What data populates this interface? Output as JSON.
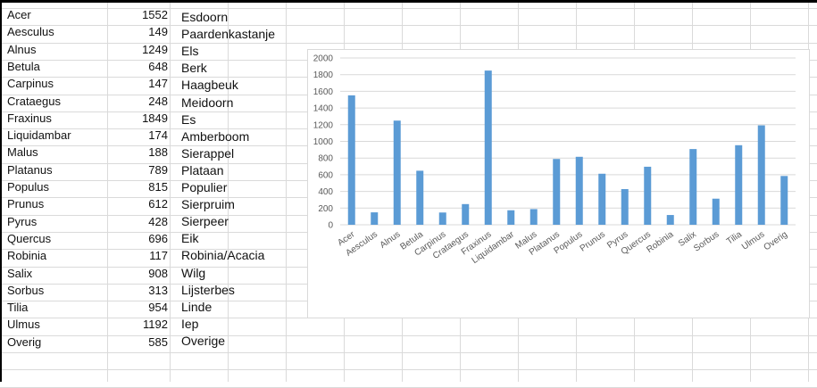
{
  "table": {
    "rows": [
      {
        "name": "Acer",
        "value": "1552",
        "dutch": "Esdoorn"
      },
      {
        "name": "Aesculus",
        "value": "149",
        "dutch": "Paardenkastanje"
      },
      {
        "name": "Alnus",
        "value": "1249",
        "dutch": "Els"
      },
      {
        "name": "Betula",
        "value": "648",
        "dutch": "Berk"
      },
      {
        "name": "Carpinus",
        "value": "147",
        "dutch": "Haagbeuk"
      },
      {
        "name": "Crataegus",
        "value": "248",
        "dutch": "Meidoorn"
      },
      {
        "name": "Fraxinus",
        "value": "1849",
        "dutch": "Es"
      },
      {
        "name": "Liquidambar",
        "value": "174",
        "dutch": "Amberboom"
      },
      {
        "name": "Malus",
        "value": "188",
        "dutch": "Sierappel"
      },
      {
        "name": "Platanus",
        "value": "789",
        "dutch": "Plataan"
      },
      {
        "name": "Populus",
        "value": "815",
        "dutch": "Populier"
      },
      {
        "name": "Prunus",
        "value": "612",
        "dutch": "Sierpruim"
      },
      {
        "name": "Pyrus",
        "value": "428",
        "dutch": "Sierpeer"
      },
      {
        "name": "Quercus",
        "value": "696",
        "dutch": "Eik"
      },
      {
        "name": "Robinia",
        "value": "117",
        "dutch": "Robinia/Acacia"
      },
      {
        "name": "Salix",
        "value": "908",
        "dutch": "Wilg"
      },
      {
        "name": "Sorbus",
        "value": "313",
        "dutch": "Lijsterbes"
      },
      {
        "name": "Tilia",
        "value": "954",
        "dutch": "Linde"
      },
      {
        "name": "Ulmus",
        "value": "1192",
        "dutch": "Iep"
      },
      {
        "name": "Overig",
        "value": "585",
        "dutch": "Overige"
      }
    ]
  },
  "chart_data": {
    "type": "bar",
    "categories": [
      "Acer",
      "Aesculus",
      "Alnus",
      "Betula",
      "Carpinus",
      "Crataegus",
      "Fraxinus",
      "Liquidambar",
      "Malus",
      "Platanus",
      "Populus",
      "Prunus",
      "Pyrus",
      "Quercus",
      "Robinia",
      "Salix",
      "Sorbus",
      "Tilia",
      "Ulmus",
      "Overig"
    ],
    "values": [
      1552,
      149,
      1249,
      648,
      147,
      248,
      1849,
      174,
      188,
      789,
      815,
      612,
      428,
      696,
      117,
      908,
      313,
      954,
      1192,
      585
    ],
    "ylim": [
      0,
      2000
    ],
    "yticks": [
      "0",
      "200",
      "400",
      "600",
      "800",
      "1000",
      "1200",
      "1400",
      "1600",
      "1800",
      "2000"
    ],
    "grid": true,
    "bar_color": "#5b9bd5",
    "title": "",
    "xlabel": "",
    "ylabel": ""
  }
}
